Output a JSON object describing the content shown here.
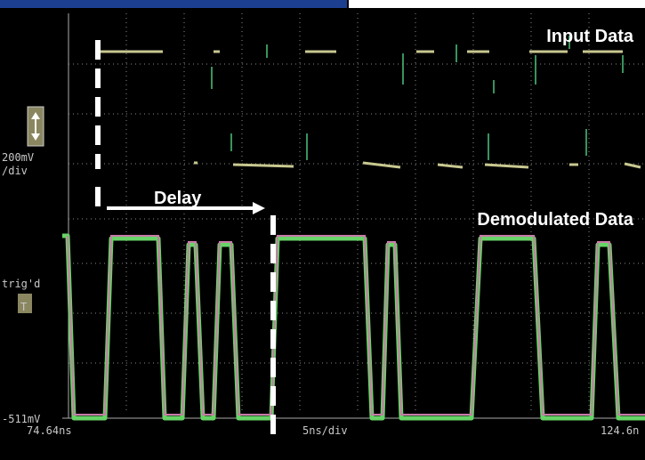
{
  "labels": {
    "input": "Input Data",
    "delay": "Delay",
    "demodulated": "Demodulated Data"
  },
  "scope": {
    "volts_per_div": "200mV",
    "div_unit": "/div",
    "trigger": "trig'd",
    "trigger_mark": "T",
    "offset": "-511mV",
    "time_start": "74.64ns",
    "time_per_div": "5ns/div",
    "time_end": "124.6n"
  }
}
